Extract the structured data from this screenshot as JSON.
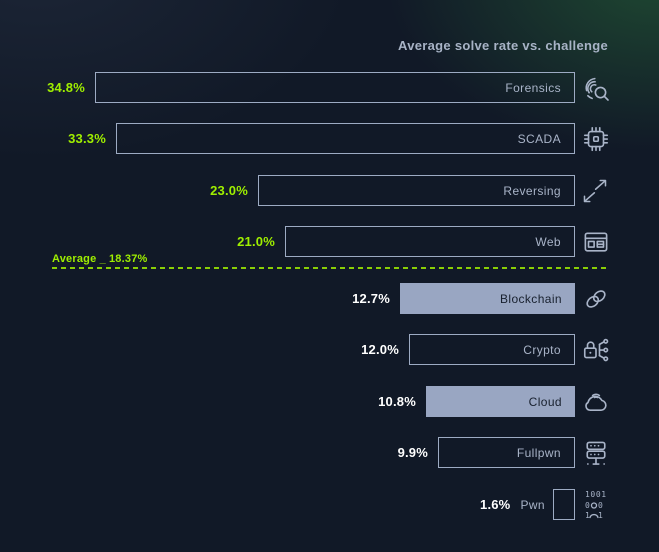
{
  "title": "Average solve rate vs. challenge",
  "average": {
    "prefix": "Average _",
    "value": "18.37%"
  },
  "colors": {
    "background": "#111927",
    "corner_glow_green": "#1f4a32",
    "accent_green": "#9fef00",
    "bar_border": "#9dabc3",
    "bar_fill": "#99a6c2",
    "bar_label_light": "#a9b4c8",
    "bar_label_dark": "#18202e",
    "value_label_white": "#ffffff",
    "title_text": "#a8b3c6"
  },
  "chart_data": {
    "type": "bar",
    "orientation": "horizontal",
    "title": "Average solve rate vs. challenge",
    "categories": [
      "Forensics",
      "SCADA",
      "Reversing",
      "Web",
      "Blockchain",
      "Crypto",
      "Cloud",
      "Fullpwn",
      "Pwn"
    ],
    "values": [
      34.8,
      33.3,
      23.0,
      21.0,
      12.7,
      12.0,
      10.8,
      9.9,
      1.6
    ],
    "value_labels": [
      "34.8%",
      "33.3%",
      "23.0%",
      "21.0%",
      "12.7%",
      "12.0%",
      "10.8%",
      "9.9%",
      "1.6%"
    ],
    "unit": "%",
    "average": 18.37,
    "average_label": "Average _ 18.37%",
    "xlim": [
      0,
      34.8
    ],
    "grid": false,
    "legend": false,
    "bars": [
      {
        "label": "Forensics",
        "pct": 34.8,
        "pct_label": "34.8%",
        "filled": false,
        "above_average": true,
        "label_outside": false,
        "icon": "fingerprint-search"
      },
      {
        "label": "SCADA",
        "pct": 33.3,
        "pct_label": "33.3%",
        "filled": false,
        "above_average": true,
        "label_outside": false,
        "icon": "microchip"
      },
      {
        "label": "Reversing",
        "pct": 23.0,
        "pct_label": "23.0%",
        "filled": false,
        "above_average": true,
        "label_outside": false,
        "icon": "diagonal-arrows"
      },
      {
        "label": "Web",
        "pct": 21.0,
        "pct_label": "21.0%",
        "filled": false,
        "above_average": true,
        "label_outside": false,
        "icon": "browser-window"
      },
      {
        "label": "Blockchain",
        "pct": 12.7,
        "pct_label": "12.7%",
        "filled": true,
        "above_average": false,
        "label_outside": false,
        "icon": "chain-links"
      },
      {
        "label": "Crypto",
        "pct": 12.0,
        "pct_label": "12.0%",
        "filled": false,
        "above_average": false,
        "label_outside": false,
        "icon": "lock-network"
      },
      {
        "label": "Cloud",
        "pct": 10.8,
        "pct_label": "10.8%",
        "filled": true,
        "above_average": false,
        "label_outside": false,
        "icon": "cloud-signal"
      },
      {
        "label": "Fullpwn",
        "pct": 9.9,
        "pct_label": "9.9%",
        "filled": false,
        "above_average": false,
        "label_outside": false,
        "icon": "server-rack"
      },
      {
        "label": "Pwn",
        "pct": 1.6,
        "pct_label": "1.6%",
        "filled": false,
        "above_average": false,
        "label_outside": true,
        "icon": "binary-person"
      }
    ]
  }
}
